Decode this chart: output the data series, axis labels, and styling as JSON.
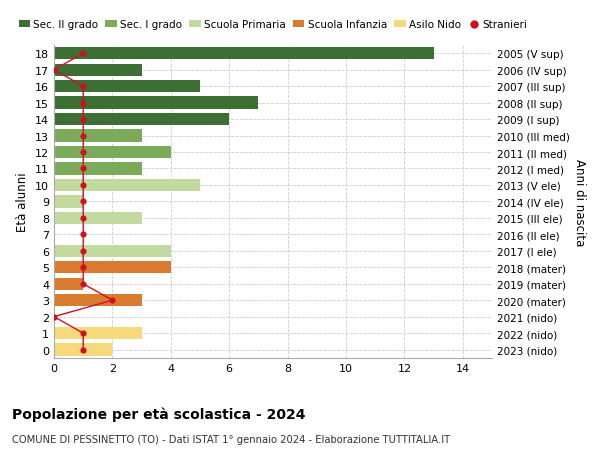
{
  "ages": [
    18,
    17,
    16,
    15,
    14,
    13,
    12,
    11,
    10,
    9,
    8,
    7,
    6,
    5,
    4,
    3,
    2,
    1,
    0
  ],
  "right_labels": [
    "2005 (V sup)",
    "2006 (IV sup)",
    "2007 (III sup)",
    "2008 (II sup)",
    "2009 (I sup)",
    "2010 (III med)",
    "2011 (II med)",
    "2012 (I med)",
    "2013 (V ele)",
    "2014 (IV ele)",
    "2015 (III ele)",
    "2016 (II ele)",
    "2017 (I ele)",
    "2018 (mater)",
    "2019 (mater)",
    "2020 (mater)",
    "2021 (nido)",
    "2022 (nido)",
    "2023 (nido)"
  ],
  "bar_values": [
    13,
    3,
    5,
    7,
    6,
    3,
    4,
    3,
    5,
    1,
    3,
    0,
    4,
    4,
    1,
    3,
    0,
    3,
    2
  ],
  "bar_colors": [
    "#3d6e34",
    "#3d6e34",
    "#3d6e34",
    "#3d6e34",
    "#3d6e34",
    "#7aaa5a",
    "#7aaa5a",
    "#7aaa5a",
    "#c2d9a0",
    "#c2d9a0",
    "#c2d9a0",
    "#c2d9a0",
    "#c2d9a0",
    "#d97b2e",
    "#d97b2e",
    "#d97b2e",
    "#f5d97a",
    "#f5d97a",
    "#f5d97a"
  ],
  "stranieri_values": [
    1,
    0,
    1,
    1,
    1,
    1,
    1,
    1,
    1,
    1,
    1,
    1,
    1,
    1,
    1,
    2,
    0,
    1,
    1
  ],
  "stranieri_color": "#cc1122",
  "legend_labels": [
    "Sec. II grado",
    "Sec. I grado",
    "Scuola Primaria",
    "Scuola Infanzia",
    "Asilo Nido",
    "Stranieri"
  ],
  "legend_colors": [
    "#3d6e34",
    "#7aaa5a",
    "#c2d9a0",
    "#d97b2e",
    "#f5d97a",
    "#cc1122"
  ],
  "ylabel": "Età alunni",
  "right_ylabel": "Anni di nascita",
  "title": "Popolazione per età scolastica - 2024",
  "subtitle": "COMUNE DI PESSINETTO (TO) - Dati ISTAT 1° gennaio 2024 - Elaborazione TUTTITALIA.IT",
  "xlim": [
    0,
    15
  ],
  "xticks": [
    0,
    2,
    4,
    6,
    8,
    10,
    12,
    14
  ],
  "bg_color": "#ffffff",
  "grid_color": "#cccccc"
}
